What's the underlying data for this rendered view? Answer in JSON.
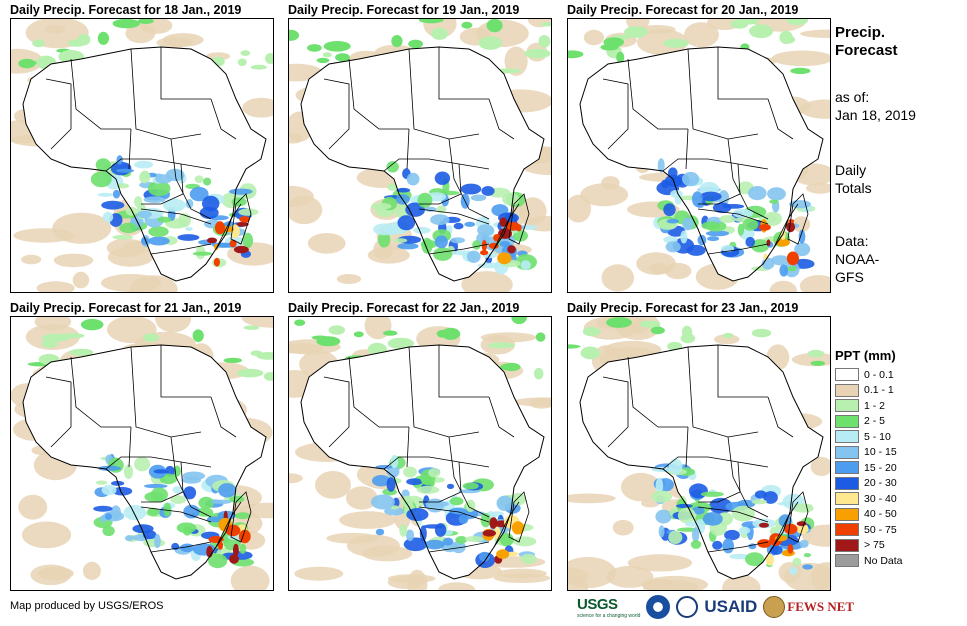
{
  "panels": [
    {
      "title": "Daily Precip. Forecast for 18 Jan., 2019"
    },
    {
      "title": "Daily Precip. Forecast for 19 Jan., 2019"
    },
    {
      "title": "Daily Precip. Forecast for 20 Jan., 2019"
    },
    {
      "title": "Daily Precip. Forecast for 21 Jan., 2019"
    },
    {
      "title": "Daily Precip. Forecast for 22 Jan., 2019"
    },
    {
      "title": "Daily Precip. Forecast for 23 Jan., 2019"
    }
  ],
  "side": {
    "title_line1": "Precip.",
    "title_line2": "Forecast",
    "asof_label": "as of:",
    "asof_date": "Jan 18, 2019",
    "totals_line1": "Daily",
    "totals_line2": "Totals",
    "data_line1": "Data:",
    "data_line2": "NOAA-",
    "data_line3": "GFS"
  },
  "legend": {
    "title": "PPT (mm)",
    "items": [
      {
        "label": "0 - 0.1",
        "color": "#ffffff"
      },
      {
        "label": "0.1 - 1",
        "color": "#e8d4b4"
      },
      {
        "label": "1 - 2",
        "color": "#b8f0b0"
      },
      {
        "label": "2 - 5",
        "color": "#6ee06e"
      },
      {
        "label": "5 - 10",
        "color": "#b8ecf4"
      },
      {
        "label": "10 - 15",
        "color": "#84c4f0"
      },
      {
        "label": "15 - 20",
        "color": "#4c9cf0"
      },
      {
        "label": "20 - 30",
        "color": "#1c5ce4"
      },
      {
        "label": "30 - 40",
        "color": "#ffe890"
      },
      {
        "label": "40 - 50",
        "color": "#f8a000"
      },
      {
        "label": "50 - 75",
        "color": "#f04000"
      },
      {
        "label": "> 75",
        "color": "#a01818"
      },
      {
        "label": "No Data",
        "color": "#9c9c9c"
      }
    ]
  },
  "credit": "Map produced by USGS/EROS",
  "logos": {
    "usgs": "USGS",
    "usgs_tagline": "science for a changing world",
    "usaid": "USAID",
    "fews": "FEWS NET"
  }
}
